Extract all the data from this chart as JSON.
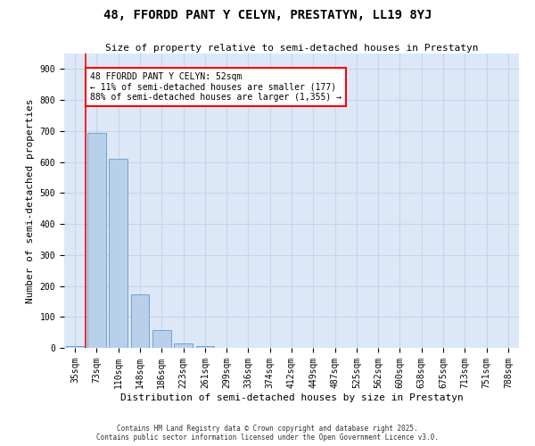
{
  "title": "48, FFORDD PANT Y CELYN, PRESTATYN, LL19 8YJ",
  "subtitle": "Size of property relative to semi-detached houses in Prestatyn",
  "xlabel": "Distribution of semi-detached houses by size in Prestatyn",
  "ylabel": "Number of semi-detached properties",
  "bar_color": "#b8d0ea",
  "bar_edge_color": "#6699cc",
  "grid_color": "#c8d4e8",
  "background_color": "#dce8f8",
  "categories": [
    "35sqm",
    "73sqm",
    "110sqm",
    "148sqm",
    "186sqm",
    "223sqm",
    "261sqm",
    "299sqm",
    "336sqm",
    "374sqm",
    "412sqm",
    "449sqm",
    "487sqm",
    "525sqm",
    "562sqm",
    "600sqm",
    "638sqm",
    "675sqm",
    "713sqm",
    "751sqm",
    "788sqm"
  ],
  "values": [
    5,
    693,
    610,
    172,
    57,
    15,
    5,
    0,
    0,
    0,
    0,
    0,
    0,
    0,
    0,
    0,
    0,
    0,
    0,
    0,
    0
  ],
  "ylim": [
    0,
    950
  ],
  "yticks": [
    0,
    100,
    200,
    300,
    400,
    500,
    600,
    700,
    800,
    900
  ],
  "annotation_line1": "48 FFORDD PANT Y CELYN: 52sqm",
  "annotation_line2": "← 11% of semi-detached houses are smaller (177)",
  "annotation_line3": "88% of semi-detached houses are larger (1,355) →",
  "footer": "Contains HM Land Registry data © Crown copyright and database right 2025.\nContains public sector information licensed under the Open Government Licence v3.0.",
  "red_line_x": 0.5,
  "title_fontsize": 10,
  "subtitle_fontsize": 8,
  "tick_fontsize": 7,
  "ylabel_fontsize": 8,
  "xlabel_fontsize": 8
}
